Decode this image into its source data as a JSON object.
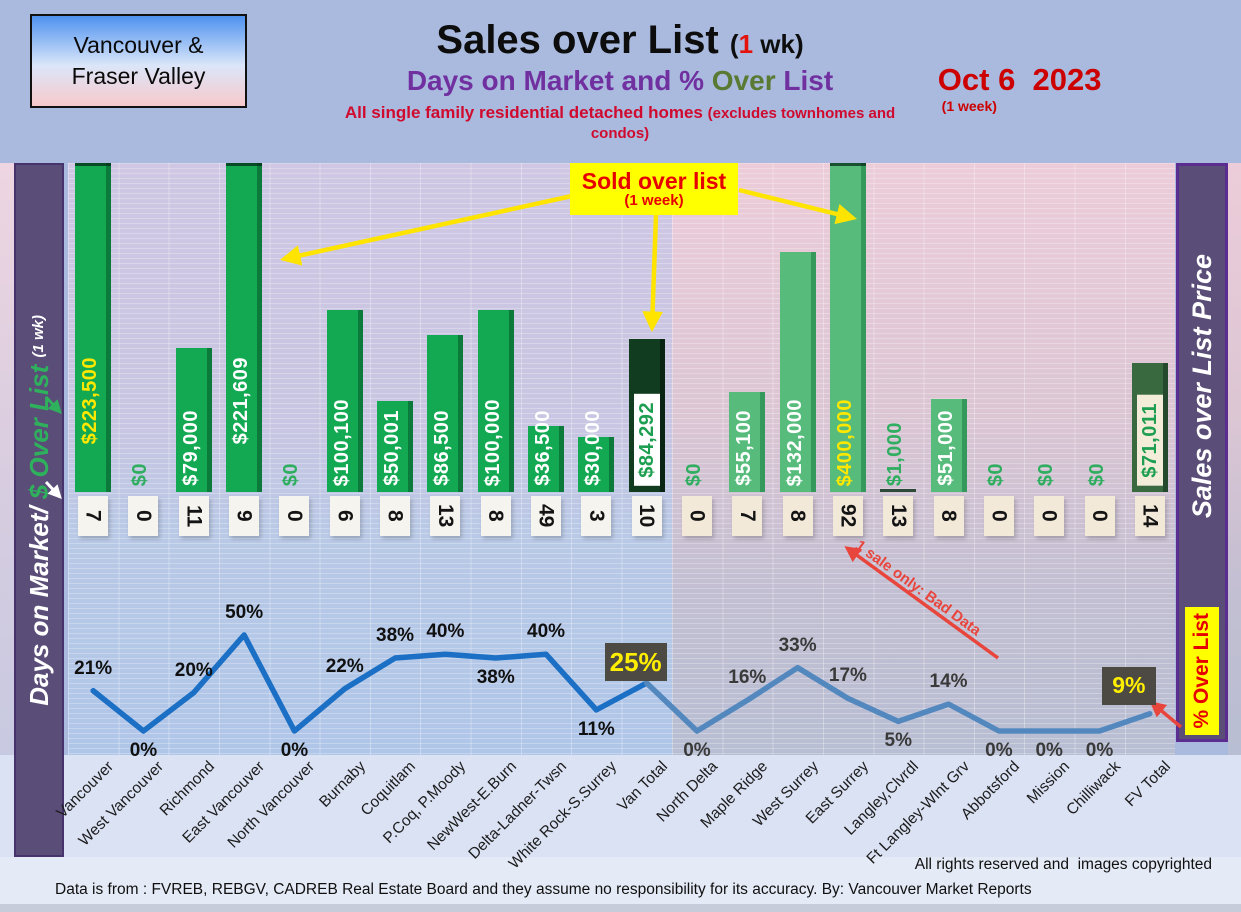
{
  "header": {
    "region_line1": "Vancouver &",
    "region_line2": "Fraser Valley",
    "title": "Sales over List",
    "title_note_pre": "(",
    "title_note_num": "1",
    "title_note_post": " wk)",
    "subtitle_pre": "Days on Market and % ",
    "subtitle_over": "Over",
    "subtitle_post": " List",
    "tagline": "All single family residential detached homes ",
    "tagline_note": "(excludes townhomes and condos)",
    "date": "Oct 6  2023",
    "date_note": " (1 week)"
  },
  "left_axis": {
    "title": "Days on Market/",
    "title_green": " $ Over List ",
    "note": "(1 wk)"
  },
  "right_axis": {
    "title": "Sales over List Price",
    "badge": "% Over List"
  },
  "callouts": {
    "sold_title": "Sold over list",
    "sold_note": "(1 week)",
    "bad_data": "1 sale only: Bad Data",
    "van_total_pct_box": "25%",
    "fv_total_pct_box": "9%"
  },
  "footer": {
    "rights": "All rights reserved and  images copyrighted",
    "disclaimer": "Data is from : FVREB, REBGV, CADREB Real Estate Board and they assume no responsibility for its accuracy. By: Vancouver Market Reports"
  },
  "colors": {
    "bar_van": "#12a952",
    "bar_van_edge": "#0b7a3a",
    "bar_fv": "#56bb7b",
    "bar_fv_edge": "#35995b",
    "bar_total_van": "#123c1f",
    "bar_total_van_edge": "#0a2413",
    "bar_total_fv": "#38693f",
    "bar_total_fv_edge": "#24492c",
    "line_van": "#1b6fc4",
    "line_fv": "#5388bf",
    "pct_box_bg": "#4c4a43",
    "pct_box_text": "#ffee00",
    "arrow_yellow": "#ffe400",
    "annotation_red": "#e8453c",
    "sidebar_purple": "#5a4d78"
  },
  "chart_data": {
    "type": "combo-bar-line",
    "bar_series_name": "$ Over List (1 wk)",
    "day_series_name": "Days on Market",
    "line_series_name": "% Over List",
    "bar_axis_clip_value": 181000,
    "line_axis_range": [
      0,
      50
    ],
    "columns": [
      {
        "name": "Vancouver",
        "bar": 223500,
        "bar_label": "$223,500",
        "label_style": "yellow",
        "days": 7,
        "pct": 21,
        "pct_label": "21%",
        "pct_pos": "above",
        "region": "van"
      },
      {
        "name": "West Vancouver",
        "bar": 0,
        "bar_label": "$0",
        "label_style": "zero",
        "days": 0,
        "pct": 0,
        "pct_label": "0%",
        "pct_pos": "below",
        "region": "van"
      },
      {
        "name": "Richmond",
        "bar": 79000,
        "bar_label": "$79,000",
        "label_style": "white",
        "days": 11,
        "pct": 20,
        "pct_label": "20%",
        "pct_pos": "above",
        "region": "van"
      },
      {
        "name": "East Vancouver",
        "bar": 221609,
        "bar_label": "$221,609",
        "label_style": "white",
        "days": 9,
        "pct": 50,
        "pct_label": "50%",
        "pct_pos": "above",
        "region": "van"
      },
      {
        "name": "North Vancouver",
        "bar": 0,
        "bar_label": "$0",
        "label_style": "zero",
        "days": 0,
        "pct": 0,
        "pct_label": "0%",
        "pct_pos": "below",
        "region": "van"
      },
      {
        "name": "Burnaby",
        "bar": 100100,
        "bar_label": "$100,100",
        "label_style": "white",
        "days": 6,
        "pct": 22,
        "pct_label": "22%",
        "pct_pos": "above",
        "region": "van"
      },
      {
        "name": "Coquitlam",
        "bar": 50001,
        "bar_label": "$50,001",
        "label_style": "white",
        "days": 8,
        "pct": 38,
        "pct_label": "38%",
        "pct_pos": "above",
        "region": "van"
      },
      {
        "name": "P.Coq, P.Moody",
        "bar": 86500,
        "bar_label": "$86,500",
        "label_style": "white",
        "days": 13,
        "pct": 40,
        "pct_label": "40%",
        "pct_pos": "above",
        "region": "van"
      },
      {
        "name": "NewWest-E.Burn",
        "bar": 100000,
        "bar_label": "$100,000",
        "label_style": "white",
        "days": 8,
        "pct": 38,
        "pct_label": "38%",
        "pct_pos": "below",
        "region": "van"
      },
      {
        "name": "Delta-Ladner-Twsn",
        "bar": 36500,
        "bar_label": "$36,500",
        "label_style": "white",
        "days": 49,
        "pct": 40,
        "pct_label": "40%",
        "pct_pos": "above",
        "region": "van"
      },
      {
        "name": "White Rock-S.Surrey",
        "bar": 30000,
        "bar_label": "$30,000",
        "label_style": "white",
        "days": 3,
        "pct": 11,
        "pct_label": "11%",
        "pct_pos": "below",
        "region": "van"
      },
      {
        "name": "Van Total",
        "bar": 84292,
        "bar_label": "$84,292",
        "label_style": "total",
        "days": 10,
        "pct": 25,
        "pct_label": "25%",
        "pct_pos": "box",
        "region": "van",
        "total": true
      },
      {
        "name": "North Delta",
        "bar": 0,
        "bar_label": "$0",
        "label_style": "zero",
        "days": 0,
        "pct": 0,
        "pct_label": "0%",
        "pct_pos": "below",
        "region": "fv"
      },
      {
        "name": "Maple Ridge",
        "bar": 55100,
        "bar_label": "$55,100",
        "label_style": "white",
        "days": 7,
        "pct": 16,
        "pct_label": "16%",
        "pct_pos": "above",
        "region": "fv"
      },
      {
        "name": "West Surrey",
        "bar": 132000,
        "bar_label": "$132,000",
        "label_style": "white",
        "days": 8,
        "pct": 33,
        "pct_label": "33%",
        "pct_pos": "above",
        "region": "fv"
      },
      {
        "name": "East Surrey",
        "bar": 400000,
        "bar_label": "$400,000",
        "label_style": "yellow",
        "days": 92,
        "pct": 17,
        "pct_label": "17%",
        "pct_pos": "above",
        "region": "fv"
      },
      {
        "name": "Langley,Clvrdl",
        "bar": 1000,
        "bar_label": "$1,000",
        "label_style": "zero",
        "days": 13,
        "pct": 5,
        "pct_label": "5%",
        "pct_pos": "below",
        "region": "fv"
      },
      {
        "name": "Ft Langley-Wlnt Grv",
        "bar": 51000,
        "bar_label": "$51,000",
        "label_style": "white",
        "days": 8,
        "pct": 14,
        "pct_label": "14%",
        "pct_pos": "above",
        "region": "fv"
      },
      {
        "name": "Abbotsford",
        "bar": 0,
        "bar_label": "$0",
        "label_style": "zero",
        "days": 0,
        "pct": 0,
        "pct_label": "0%",
        "pct_pos": "below",
        "region": "fv"
      },
      {
        "name": "Mission",
        "bar": 0,
        "bar_label": "$0",
        "label_style": "zero",
        "days": 0,
        "pct": 0,
        "pct_label": "0%",
        "pct_pos": "below",
        "region": "fv"
      },
      {
        "name": "Chilliwack",
        "bar": 0,
        "bar_label": "$0",
        "label_style": "zero",
        "days": 0,
        "pct": 0,
        "pct_label": "0%",
        "pct_pos": "below",
        "region": "fv"
      },
      {
        "name": "FV Total",
        "bar": 71011,
        "bar_label": "$71,011",
        "label_style": "total",
        "days": 14,
        "pct": 9,
        "pct_label": "9%",
        "pct_pos": "box",
        "region": "fv",
        "total": true
      }
    ]
  }
}
